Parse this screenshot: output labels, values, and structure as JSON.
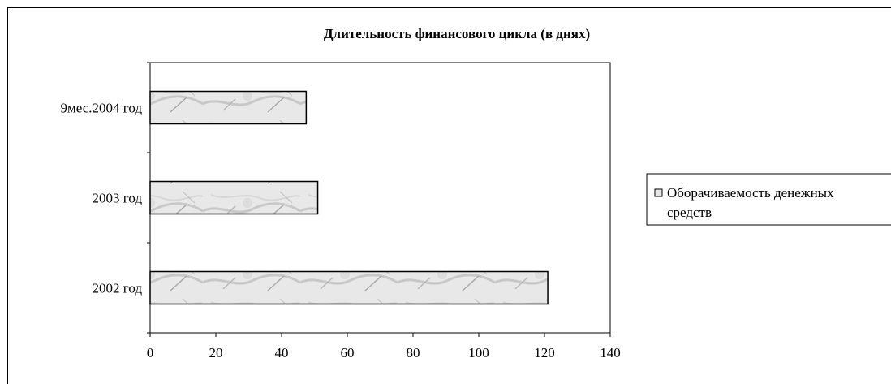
{
  "header_text": "",
  "chart_data": {
    "type": "bar",
    "orientation": "horizontal",
    "title": "Длительность финансового цикла (в днях)",
    "categories": [
      "9мес.2004 год",
      "2003 год",
      "2002 год"
    ],
    "series": [
      {
        "name": "Оборачиваемость денежных средств",
        "values": [
          47.5,
          51,
          121
        ]
      }
    ],
    "xlim": [
      0,
      140
    ],
    "xticks": [
      "0",
      "20",
      "40",
      "60",
      "80",
      "100",
      "120",
      "140"
    ],
    "legend": {
      "position": "right",
      "lines": [
        "Оборачиваемость денежных",
        "средств"
      ]
    },
    "grid": false,
    "bar_fill": "#e6e6e6",
    "bar_stroke": "#000000"
  }
}
